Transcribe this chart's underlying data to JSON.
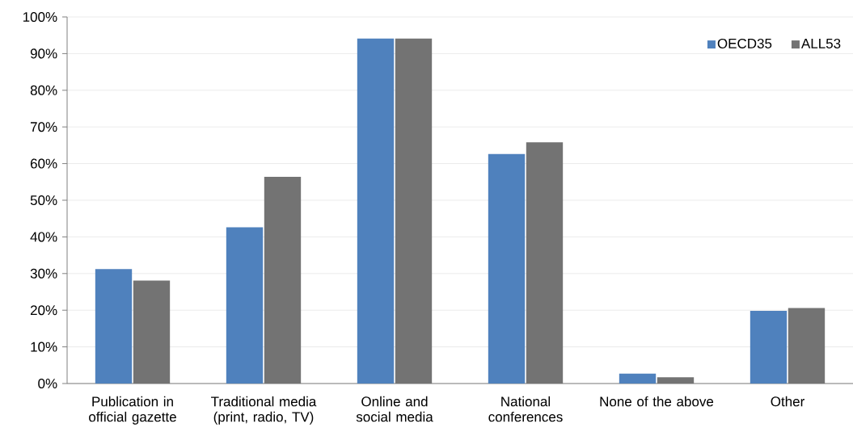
{
  "chart_data": {
    "type": "bar",
    "categories": [
      "Publication in official gazette",
      "Traditional media (print, radio, TV)",
      "Online and social media",
      "National conferences",
      "None of the above",
      "Other"
    ],
    "series": [
      {
        "name": "OECD35",
        "color": "#4f81bd",
        "values": [
          31.2,
          42.6,
          94.1,
          62.6,
          2.7,
          19.8
        ]
      },
      {
        "name": "ALL53",
        "color": "#737373",
        "values": [
          28.1,
          56.4,
          94.1,
          65.8,
          1.7,
          20.6
        ]
      }
    ],
    "ylim": [
      0,
      100
    ],
    "yticks": [
      {
        "value": 0,
        "label": "0%"
      },
      {
        "value": 10,
        "label": "10%"
      },
      {
        "value": 20,
        "label": "20%"
      },
      {
        "value": 30,
        "label": "30%"
      },
      {
        "value": 40,
        "label": "40%"
      },
      {
        "value": 50,
        "label": "50%"
      },
      {
        "value": 60,
        "label": "60%"
      },
      {
        "value": 70,
        "label": "70%"
      },
      {
        "value": 80,
        "label": "80%"
      },
      {
        "value": 90,
        "label": "90%"
      },
      {
        "value": 100,
        "label": "100%"
      }
    ],
    "grid": "y",
    "legend": "top right"
  }
}
